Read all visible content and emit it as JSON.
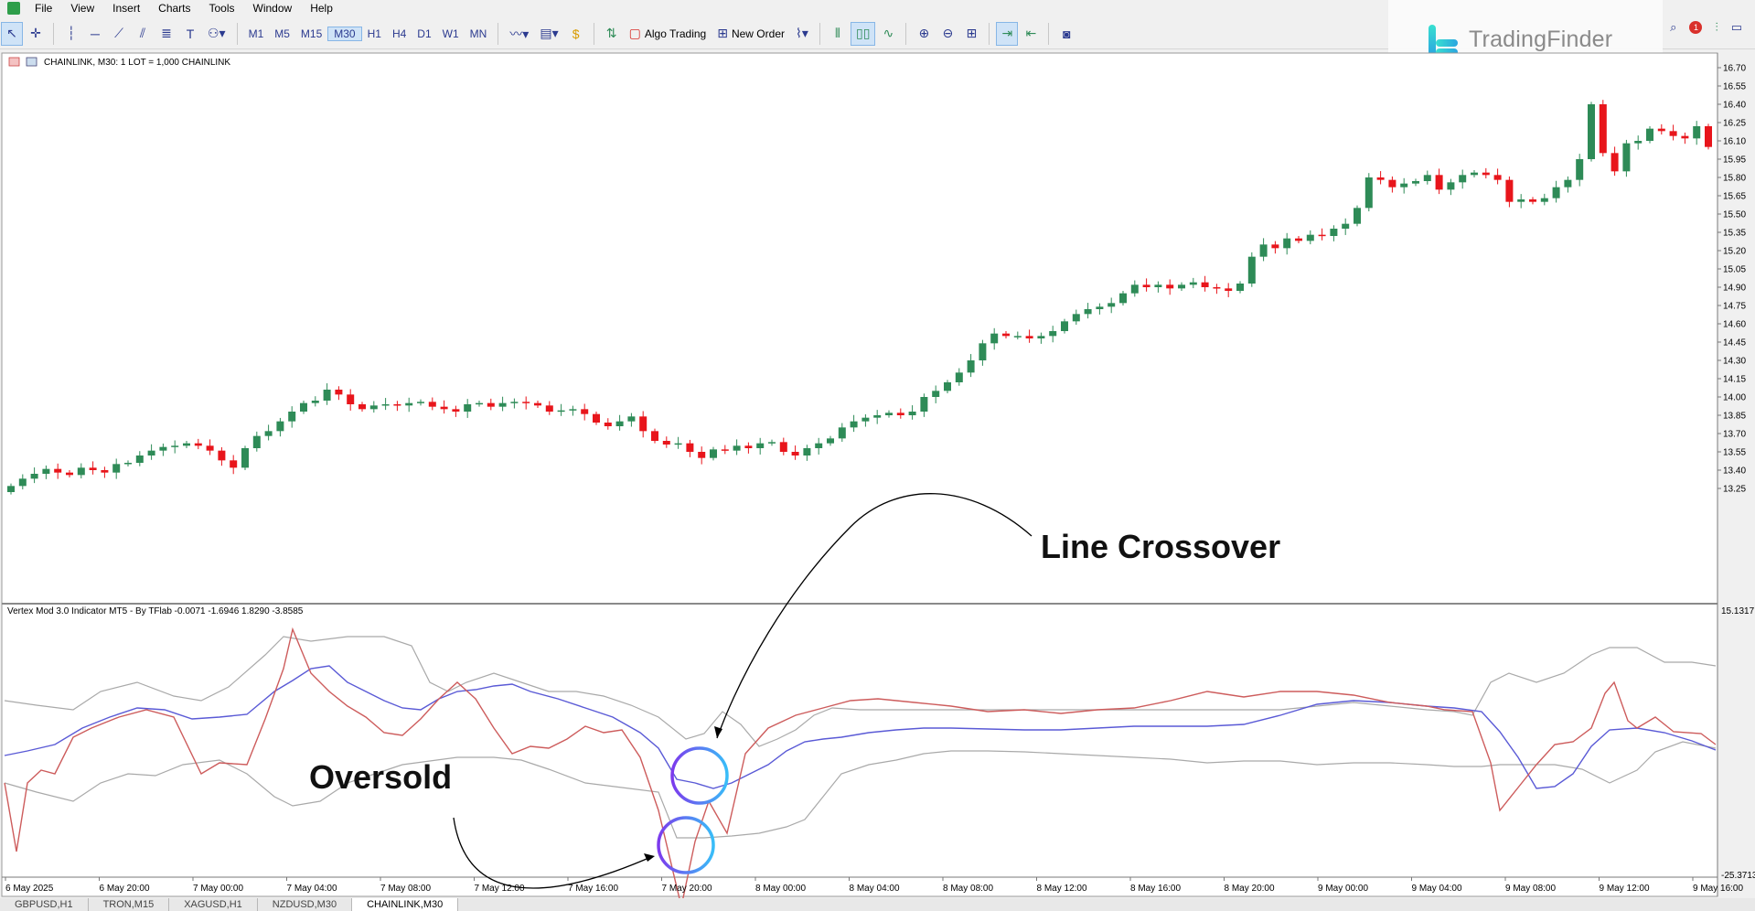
{
  "menu": [
    "File",
    "View",
    "Insert",
    "Charts",
    "Tools",
    "Window",
    "Help"
  ],
  "toolbar": {
    "timeframes": [
      "M1",
      "M5",
      "M15",
      "M30",
      "H1",
      "H4",
      "D1",
      "W1",
      "MN"
    ],
    "active_timeframe": "M30",
    "algo_trading": "Algo Trading",
    "new_order": "New Order"
  },
  "logo": {
    "name": "TradingFinder"
  },
  "notification_count": "1",
  "chart": {
    "header": "CHAINLINK, M30:  1 LOT = 1,000 CHAINLINK",
    "price_labels": [
      "16.70",
      "16.55",
      "16.40",
      "16.25",
      "16.10",
      "15.95",
      "15.80",
      "15.65",
      "15.50",
      "15.35",
      "15.20",
      "15.05",
      "14.90",
      "14.75",
      "14.60",
      "14.45",
      "14.30",
      "14.15",
      "14.00",
      "13.85",
      "13.70",
      "13.55",
      "13.40",
      "13.25"
    ],
    "time_labels": [
      "6 May 2025",
      "6 May 20:00",
      "7 May 00:00",
      "7 May 04:00",
      "7 May 08:00",
      "7 May 12:00",
      "7 May 16:00",
      "7 May 20:00",
      "8 May 00:00",
      "8 May 04:00",
      "8 May 08:00",
      "8 May 12:00",
      "8 May 16:00",
      "8 May 20:00",
      "9 May 00:00",
      "9 May 04:00",
      "9 May 08:00",
      "9 May 12:00",
      "9 May 16:00"
    ]
  },
  "indicator": {
    "header": "Vertex Mod 3.0 Indicator MT5 - By TFlab -0.0071 -1.6946 1.8290 -3.8585",
    "max_label": "15.1317",
    "min_label": "-25.3713"
  },
  "annotations": {
    "crossover": "Line Crossover",
    "oversold": "Oversold"
  },
  "tabs": [
    "GBPUSD,H1",
    "TRON,M15",
    "XAGUSD,H1",
    "NZDUSD,M30",
    "CHAINLINK,M30"
  ],
  "active_tab": "CHAINLINK,M30",
  "colors": {
    "bull": "#2e8b57",
    "bear": "#e8151b",
    "signal_red": "#cd5c5c",
    "signal_blue": "#5a5ad6",
    "band": "#a9a9a9",
    "circle_a": "#7c3aed",
    "circle_b": "#38bdf8"
  },
  "chart_data": {
    "type": "candlestick",
    "price_closes": [
      13.27,
      13.33,
      13.37,
      13.41,
      13.38,
      13.36,
      13.42,
      13.4,
      13.38,
      13.45,
      13.46,
      13.52,
      13.56,
      13.59,
      13.6,
      13.62,
      13.6,
      13.56,
      13.48,
      13.42,
      13.58,
      13.68,
      13.72,
      13.8,
      13.88,
      13.95,
      13.97,
      14.06,
      14.02,
      13.94,
      13.9,
      13.93,
      13.94,
      13.93,
      13.95,
      13.96,
      13.92,
      13.9,
      13.88,
      13.94,
      13.95,
      13.92,
      13.95,
      13.96,
      13.95,
      13.93,
      13.88,
      13.89,
      13.9,
      13.86,
      13.79,
      13.76,
      13.8,
      13.84,
      13.72,
      13.64,
      13.61,
      13.62,
      13.55,
      13.5,
      13.57,
      13.56,
      13.6,
      13.58,
      13.62,
      13.63,
      13.55,
      13.52,
      13.58,
      13.62,
      13.66,
      13.75,
      13.8,
      13.83,
      13.85,
      13.87,
      13.85,
      13.88,
      14.0,
      14.05,
      14.12,
      14.2,
      14.3,
      14.44,
      14.52,
      14.5,
      14.5,
      14.48,
      14.5,
      14.54,
      14.62,
      14.68,
      14.72,
      14.74,
      14.77,
      14.85,
      14.92,
      14.9,
      14.92,
      14.89,
      14.92,
      14.94,
      14.9,
      14.89,
      14.87,
      14.93,
      15.15,
      15.25,
      15.22,
      15.3,
      15.28,
      15.33,
      15.32,
      15.38,
      15.42,
      15.55,
      15.8,
      15.78,
      15.72,
      15.75,
      15.77,
      15.82,
      15.7,
      15.76,
      15.82,
      15.84,
      15.82,
      15.78,
      15.6,
      15.62,
      15.6,
      15.63,
      15.72,
      15.78,
      15.95,
      16.4,
      16.0,
      15.85,
      16.08,
      16.1,
      16.2,
      16.18,
      16.14,
      16.12,
      16.22,
      16.05
    ]
  }
}
